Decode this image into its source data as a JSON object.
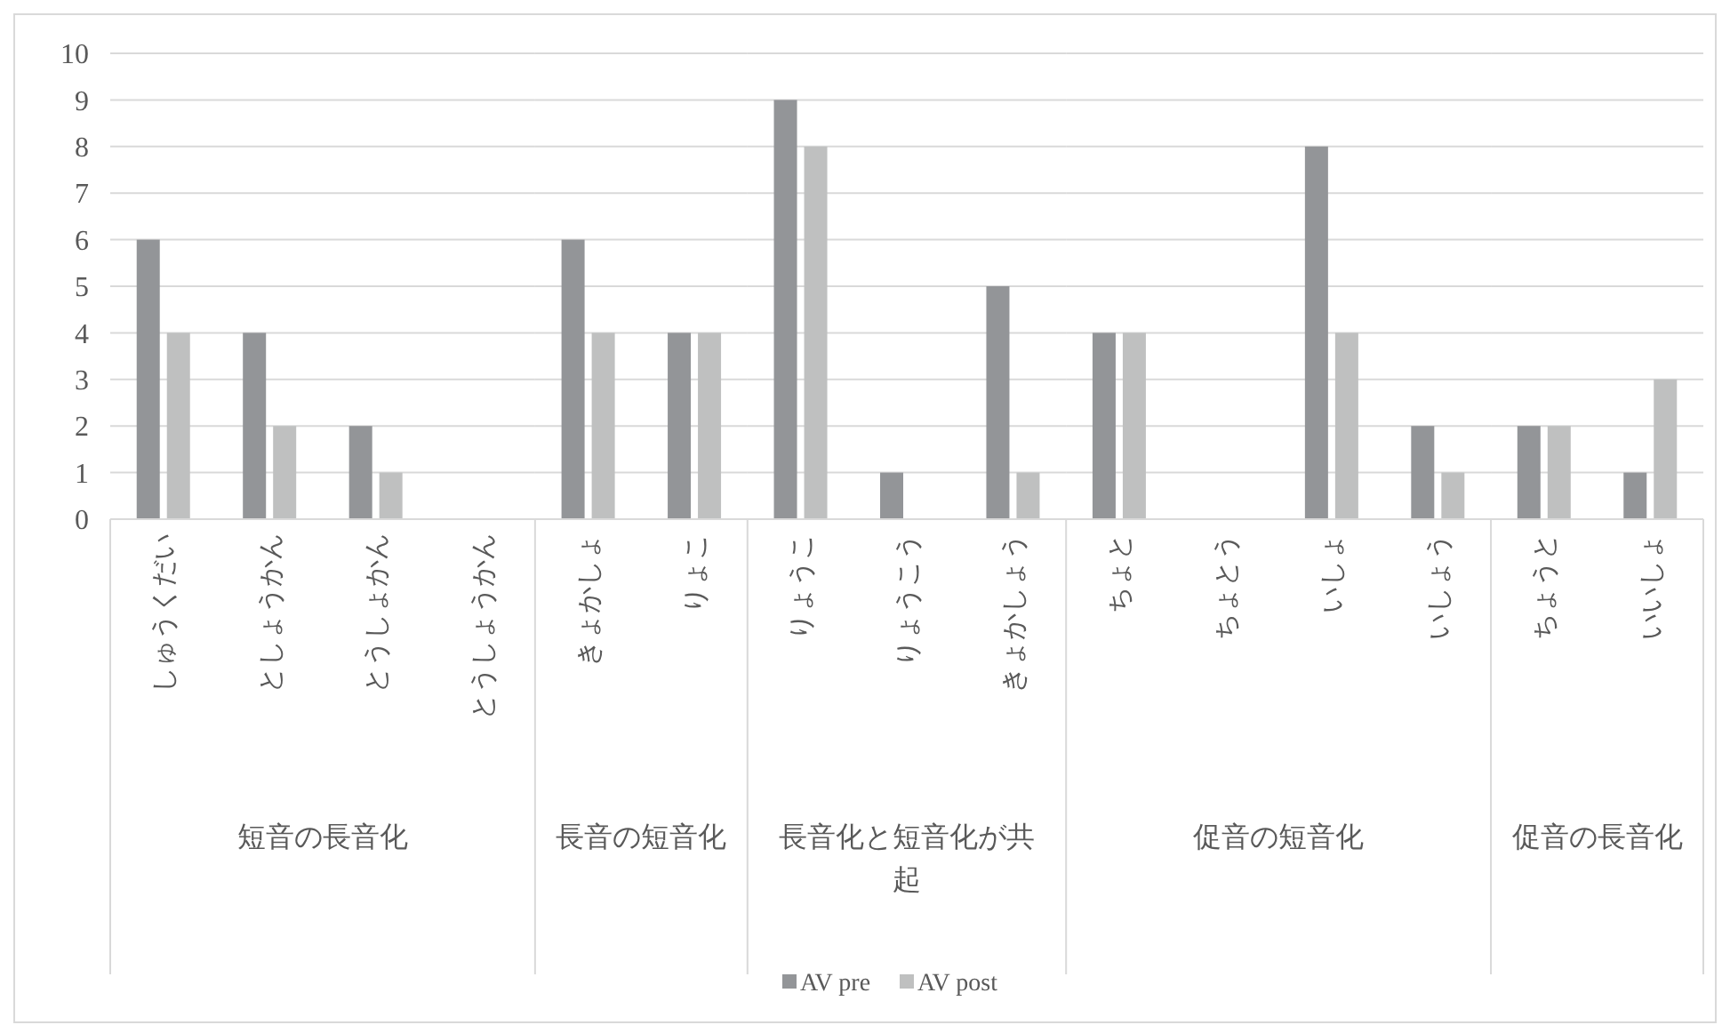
{
  "chart_data": [
    {
      "type": "bar",
      "xlabel": "短音の長音化",
      "categories": [
        "しゅうくだい",
        "としょうかん",
        "とうしょかん",
        "とうしょうかん"
      ],
      "series": [
        {
          "name": "AV pre",
          "color": "#939598",
          "values": [
            6,
            4,
            2,
            0
          ]
        },
        {
          "name": "AV post",
          "color": "#bfc0c0",
          "values": [
            4,
            2,
            1,
            0
          ]
        }
      ],
      "ylim": [
        0,
        10
      ],
      "yticks": [
        0,
        1,
        2,
        3,
        4,
        5,
        6,
        7,
        8,
        9,
        10
      ],
      "grid": "y",
      "legend": "bottom"
    },
    {
      "type": "bar",
      "xlabel": "長音の短音化",
      "categories": [
        "きょかしょ",
        "りょこ"
      ],
      "series": [
        {
          "color": "#939598",
          "values": [
            6,
            4
          ]
        },
        {
          "color": "#bfc0c0",
          "values": [
            4,
            4
          ]
        }
      ],
      "ylim": [
        0,
        10
      ],
      "yticks": [
        0,
        1,
        2,
        3,
        4,
        5,
        6,
        7,
        8,
        9,
        10
      ],
      "grid": "y",
      "tick_labels": "x"
    },
    {
      "type": "bar",
      "xlabel": "長音化と短音化が共起",
      "categories": [
        "りょうこ",
        "りょうこう",
        "きょかしょう"
      ],
      "series": [
        {
          "color": "#939598",
          "values": [
            9,
            1,
            5
          ]
        },
        {
          "color": "#bfc0c0",
          "values": [
            8,
            0,
            1
          ]
        }
      ],
      "ylim": [
        0,
        10
      ],
      "yticks": [
        0,
        1,
        2,
        3,
        4,
        5,
        6,
        7,
        8,
        9,
        10
      ],
      "grid": "y",
      "tick_labels": "x"
    },
    {
      "type": "bar",
      "xlabel": "促音の短音化",
      "categories": [
        "ちょと",
        "ちょとう",
        "いしょ",
        "いしょう"
      ],
      "series": [
        {
          "color": "#939598",
          "values": [
            4,
            0,
            8,
            2
          ]
        },
        {
          "color": "#bfc0c0",
          "values": [
            4,
            0,
            4,
            1
          ]
        }
      ],
      "ylim": [
        0,
        10
      ],
      "yticks": [
        0,
        1,
        2,
        3,
        4,
        5,
        6,
        7,
        8,
        9,
        10
      ],
      "grid": "y",
      "tick_labels": "x"
    },
    {
      "type": "bar",
      "xlabel": "促音の長音化",
      "categories": [
        "ちょうと",
        "いいしょ"
      ],
      "series": [
        {
          "color": "#939598",
          "values": [
            2,
            1
          ]
        },
        {
          "color": "#bfc0c0",
          "values": [
            2,
            3
          ]
        }
      ],
      "ylim": [
        0,
        10
      ],
      "yticks": [
        0,
        1,
        2,
        3,
        4,
        5,
        6,
        7,
        8,
        9,
        10
      ],
      "grid": "y",
      "tick_labels": "x"
    }
  ]
}
